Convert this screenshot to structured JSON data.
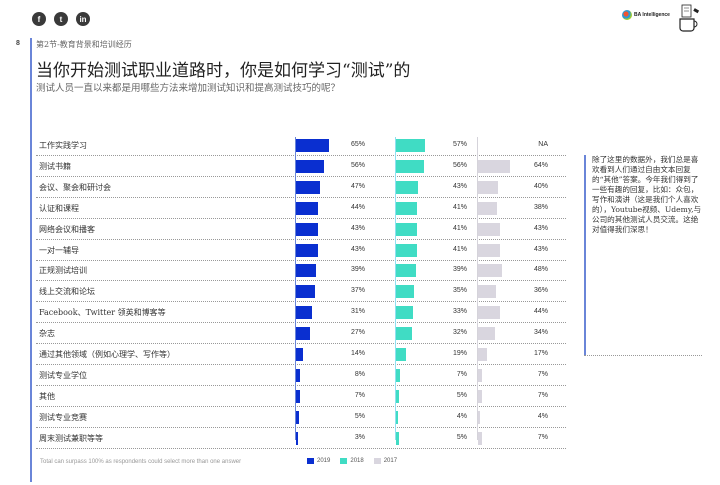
{
  "header": {
    "social_icons": [
      "facebook-icon",
      "twitter-icon",
      "linkedin-icon"
    ],
    "logo_text": "BA Intelligence",
    "page_number": "8",
    "section": "第2节-教育背景和培训经历",
    "title": "当你开始测试职业道路时，你是如何学习“测试”的",
    "subtitle": "测试人员一直以来都是用哪些方法来增加测试知识和提高测试技巧的呢？"
  },
  "colors": {
    "2019": "#0a2fd0",
    "2018": "#40dcc4",
    "2017": "#d9d6df",
    "accent": "#6a85d8"
  },
  "chart_data": {
    "type": "bar",
    "title": "当你开始测试职业道路时，你是如何学习“测试”的",
    "categories": [
      "工作实践学习",
      "测试书籍",
      "会议、聚会和研讨会",
      "认证和课程",
      "网络会议和播客",
      "一对一辅导",
      "正规测试培训",
      "线上交流和论坛",
      "Facebook、Twitter 领英和博客等",
      "杂志",
      "通过其他领域（例如心理学、写作等）",
      "测试专业学位",
      "其他",
      "测试专业竞赛",
      "周末测试兼职等等"
    ],
    "series": [
      {
        "name": "2019",
        "values": [
          65,
          56,
          47,
          44,
          43,
          43,
          39,
          37,
          31,
          27,
          14,
          8,
          7,
          5,
          3
        ],
        "labels": [
          "65%",
          "56%",
          "47%",
          "44%",
          "43%",
          "43%",
          "39%",
          "37%",
          "31%",
          "27%",
          "14%",
          "8%",
          "7%",
          "5%",
          "3%"
        ]
      },
      {
        "name": "2018",
        "values": [
          57,
          56,
          43,
          41,
          41,
          41,
          39,
          35,
          33,
          32,
          19,
          7,
          5,
          4,
          5
        ],
        "labels": [
          "57%",
          "56%",
          "43%",
          "41%",
          "41%",
          "41%",
          "39%",
          "35%",
          "33%",
          "32%",
          "19%",
          "7%",
          "5%",
          "4%",
          "5%"
        ]
      },
      {
        "name": "2017",
        "values": [
          null,
          64,
          40,
          38,
          43,
          43,
          48,
          36,
          44,
          34,
          17,
          7,
          7,
          4,
          7
        ],
        "labels": [
          "NA",
          "64%",
          "40%",
          "38%",
          "43%",
          "43%",
          "48%",
          "36%",
          "44%",
          "34%",
          "17%",
          "7%",
          "7%",
          "4%",
          "7%"
        ]
      }
    ],
    "legend": [
      "2019",
      "2018",
      "2017"
    ],
    "legend_position": "bottom",
    "unit": "%"
  },
  "note": "除了这里的数据外，我们总是喜欢看到人们通过自由文本回复的“其他”答案。今年我们得到了一些有趣的回复，比如：众包，写作和演讲（这是我们个人喜欢的），Youtube视频、Udemy,与公司的其他测试人员交流。这绝对值得我们深思！",
  "footnote": "Total can surpass 100% as respondents could select more than one answer"
}
